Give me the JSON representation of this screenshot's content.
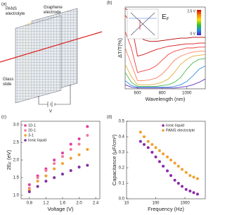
{
  "diagram": {
    "label": "(a)",
    "electrolyte": [
      "PANS",
      "electrolyte"
    ],
    "electrode": [
      "Graphene",
      "electrode"
    ],
    "slide": [
      "Glass",
      "slide"
    ],
    "source": "V"
  },
  "chart_data": [
    {
      "type": "line",
      "label": "(b)",
      "xlabel": "Wavelength (nm)",
      "ylabel": "ΔT/T(%)",
      "x": [
        500,
        550,
        600,
        650,
        700,
        750,
        800,
        850,
        900,
        950,
        1000,
        1050,
        1100,
        1150
      ],
      "xlim": [
        500,
        1150
      ],
      "xticks": [
        600,
        800,
        1000
      ],
      "ylim": [
        0,
        10
      ],
      "inset": {
        "symbol": "E",
        "sub": "F"
      },
      "colorbar": {
        "labels": [
          "2.5 V",
          "0 V"
        ],
        "colors": [
          "#d00000",
          "#ff8000",
          "#f0e000",
          "#30c030",
          "#2090e0",
          "#5020c0"
        ]
      },
      "series": [
        {
          "color": "#b00000",
          "values": [
            9.8,
            9.5,
            7,
            6,
            5.8,
            5.8,
            5.9,
            6,
            6.1,
            6.2,
            6.2,
            6.3,
            6.3,
            6.3
          ]
        },
        {
          "color": "#d81818",
          "values": [
            9,
            8,
            4,
            4.2,
            4.5,
            4.8,
            5,
            5.2,
            5.3,
            5.4,
            5.5,
            5.5,
            5.6,
            5.6
          ]
        },
        {
          "color": "#f04040",
          "values": [
            7,
            5,
            2,
            2.2,
            2.4,
            2.8,
            3.5,
            4.2,
            4.6,
            4.8,
            5,
            5,
            5.1,
            5.1
          ]
        },
        {
          "color": "#ff8060",
          "values": [
            5,
            3,
            1,
            1,
            1.1,
            1.3,
            1.8,
            2.6,
            3.5,
            4,
            4.3,
            4.5,
            4.6,
            4.6
          ]
        },
        {
          "color": "#e0b040",
          "values": [
            3,
            1.5,
            0.5,
            0.5,
            0.5,
            0.6,
            0.8,
            1.2,
            2,
            3,
            3.6,
            4,
            4.1,
            4.2
          ]
        },
        {
          "color": "#50b850",
          "values": [
            2,
            0.8,
            0.3,
            0.3,
            0.3,
            0.3,
            0.4,
            0.5,
            0.8,
            1.4,
            2.4,
            3.2,
            3.6,
            3.7
          ]
        },
        {
          "color": "#3090e0",
          "values": [
            1,
            0.4,
            0.2,
            0.2,
            0.2,
            0.2,
            0.2,
            0.2,
            0.3,
            0.5,
            0.9,
            1.6,
            2.4,
            2.8
          ]
        },
        {
          "color": "#6030c0",
          "values": [
            0.5,
            0.2,
            0.1,
            0.1,
            0.1,
            0.1,
            0.1,
            0.1,
            0.1,
            0.2,
            0.3,
            0.5,
            0.8,
            1.2
          ]
        }
      ]
    },
    {
      "type": "scatter",
      "label": "(c)",
      "xlabel": "Voltage (V)",
      "ylabel": {
        "main": "2E",
        "sub": "F",
        "rest": " (eV)"
      },
      "x": [
        0.8,
        1.0,
        1.2,
        1.4,
        1.6,
        1.8,
        2.0,
        2.2
      ],
      "xlim": [
        0.6,
        2.5
      ],
      "xticks": [
        0.8,
        1.2,
        1.6,
        {
          "value": 2,
          "label": "2.0"
        },
        2.4
      ],
      "ylim": [
        0.9,
        3.1
      ],
      "yticks": [
        {
          "value": 1,
          "label": "1.0"
        },
        1.5,
        {
          "value": 2,
          "label": "2.0"
        },
        2.5,
        {
          "value": 3,
          "label": "3.0"
        }
      ],
      "legend": "top-left",
      "series": [
        {
          "name": "10-1",
          "color": "#e03ca0",
          "values": [
            1.3,
            1.55,
            1.75,
            2.0,
            2.2,
            2.45,
            2.6,
            2.95
          ]
        },
        {
          "name": "20-1",
          "color": "#f27a9a",
          "values": [
            1.2,
            1.5,
            1.7,
            1.9,
            2.1,
            2.3,
            2.45,
            2.7
          ]
        },
        {
          "name": "3-1",
          "color": "#f0a030",
          "values": [
            1.15,
            1.4,
            1.55,
            1.75,
            1.9,
            2.05,
            2.15,
            2.3
          ]
        },
        {
          "name": "Ionic liquid",
          "color": "#8030a0",
          "values": [
            1.1,
            1.25,
            1.4,
            1.5,
            1.6,
            1.7,
            1.8,
            1.85
          ]
        }
      ]
    },
    {
      "type": "scatter",
      "label": "(d)",
      "xlabel": "Frequency (Hz)",
      "ylabel": {
        "main": "Capacitance (μF/cm²)"
      },
      "x": [
        30,
        40,
        55,
        75,
        100,
        135,
        180,
        250,
        330,
        450,
        600,
        800,
        1100,
        1500,
        2000,
        2700
      ],
      "xlog": true,
      "xlim": [
        10,
        5000
      ],
      "xticks": [
        10,
        100,
        1000
      ],
      "ylim": [
        0,
        0.5
      ],
      "yticks": [
        {
          "value": 0,
          "label": "0.0"
        },
        0.1,
        0.2,
        0.3,
        0.4,
        0.5
      ],
      "legend": "top-right",
      "series": [
        {
          "name": "Ionic liquid",
          "color": "#8a2aa8",
          "values": [
            0.37,
            0.35,
            0.33,
            0.3,
            0.27,
            0.24,
            0.21,
            0.18,
            0.15,
            0.12,
            0.1,
            0.08,
            0.06,
            0.05,
            0.04,
            0.03
          ]
        },
        {
          "name": "PANS electrolyte",
          "color": "#f0a030",
          "values": [
            0.43,
            0.4,
            0.37,
            0.35,
            0.33,
            0.31,
            0.29,
            0.27,
            0.25,
            0.23,
            0.21,
            0.19,
            0.17,
            0.15,
            0.14,
            0.13
          ]
        }
      ]
    }
  ]
}
